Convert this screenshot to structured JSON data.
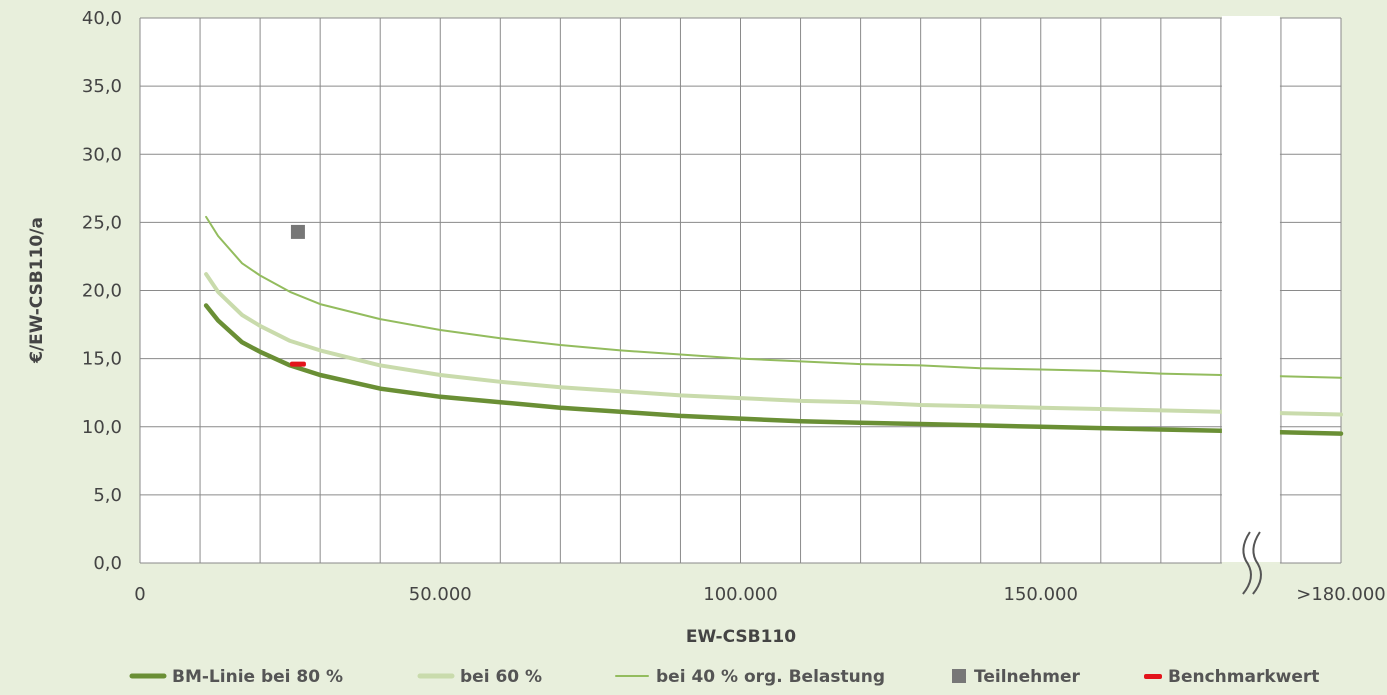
{
  "chart_data": {
    "type": "line",
    "xlabel": "EW-CSB110",
    "ylabel": "€/EW-CSB110/a",
    "xlim": [
      0,
      200000
    ],
    "ylim": [
      0,
      40
    ],
    "x_tick_labels": [
      {
        "x": 0,
        "label": "0"
      },
      {
        "x": 50000,
        "label": "50.000"
      },
      {
        "x": 100000,
        "label": "100.000"
      },
      {
        "x": 150000,
        "label": "150.000"
      },
      {
        "x": 200000,
        "label": ">180.000"
      }
    ],
    "y_tick_labels": [
      "0,0",
      "5,0",
      "10,0",
      "15,0",
      "20,0",
      "25,0",
      "30,0",
      "35,0",
      "40,0"
    ],
    "y_ticks": [
      0,
      5,
      10,
      15,
      20,
      25,
      30,
      35,
      40
    ],
    "x_grid": [
      10000,
      20000,
      30000,
      40000,
      50000,
      60000,
      70000,
      80000,
      90000,
      100000,
      110000,
      120000,
      130000,
      140000,
      150000,
      160000,
      170000,
      180000,
      190000,
      200000
    ],
    "axis_break": [
      180000,
      190000
    ],
    "grid": true,
    "legend_position": "bottom",
    "series": [
      {
        "name": "BM-Linie bei 80 %",
        "color": "#6a8f35",
        "style": "thick",
        "x": [
          11000,
          13000,
          17000,
          20000,
          25000,
          30000,
          40000,
          50000,
          60000,
          70000,
          80000,
          90000,
          100000,
          110000,
          120000,
          130000,
          140000,
          150000,
          160000,
          170000,
          180000,
          190000,
          200000
        ],
        "y": [
          18.9,
          17.8,
          16.2,
          15.5,
          14.5,
          13.8,
          12.8,
          12.2,
          11.8,
          11.4,
          11.1,
          10.8,
          10.6,
          10.4,
          10.3,
          10.2,
          10.1,
          10.0,
          9.9,
          9.8,
          9.7,
          9.6,
          9.5
        ]
      },
      {
        "name": "bei 60 %",
        "color": "#c9dbac",
        "style": "medium",
        "x": [
          11000,
          13000,
          17000,
          20000,
          25000,
          30000,
          40000,
          50000,
          60000,
          70000,
          80000,
          90000,
          100000,
          110000,
          120000,
          130000,
          140000,
          150000,
          160000,
          170000,
          180000,
          190000,
          200000
        ],
        "y": [
          21.2,
          19.9,
          18.2,
          17.4,
          16.3,
          15.6,
          14.5,
          13.8,
          13.3,
          12.9,
          12.6,
          12.3,
          12.1,
          11.9,
          11.8,
          11.6,
          11.5,
          11.4,
          11.3,
          11.2,
          11.1,
          11.0,
          10.9
        ]
      },
      {
        "name": "bei 40 % org. Belastung",
        "color": "#93bc5e",
        "style": "thin",
        "x": [
          11000,
          13000,
          17000,
          20000,
          25000,
          30000,
          40000,
          50000,
          60000,
          70000,
          80000,
          90000,
          100000,
          110000,
          120000,
          130000,
          140000,
          150000,
          160000,
          170000,
          180000,
          190000,
          200000
        ],
        "y": [
          25.4,
          24.0,
          22.0,
          21.1,
          19.9,
          19.0,
          17.9,
          17.1,
          16.5,
          16.0,
          15.6,
          15.3,
          15.0,
          14.8,
          14.6,
          14.5,
          14.3,
          14.2,
          14.1,
          13.9,
          13.8,
          13.7,
          13.6
        ]
      }
    ],
    "markers": [
      {
        "name": "Teilnehmer",
        "shape": "square",
        "color": "#777777",
        "x": 26300,
        "y": 24.3
      },
      {
        "name": "Benchmarkwert",
        "shape": "dash",
        "color": "#e3141b",
        "x": 26300,
        "y": 14.6
      }
    ],
    "legend": [
      {
        "label": "BM-Linie bei 80 %",
        "kind": "line",
        "color": "#6a8f35",
        "weight": 5
      },
      {
        "label": "bei 60 %",
        "kind": "line",
        "color": "#c9dbac",
        "weight": 5
      },
      {
        "label": "bei 40 % org. Belastung",
        "kind": "line",
        "color": "#93bc5e",
        "weight": 2
      },
      {
        "label": "Teilnehmer",
        "kind": "square",
        "color": "#777777"
      },
      {
        "label": "Benchmarkwert",
        "kind": "dash",
        "color": "#e3141b"
      }
    ]
  }
}
